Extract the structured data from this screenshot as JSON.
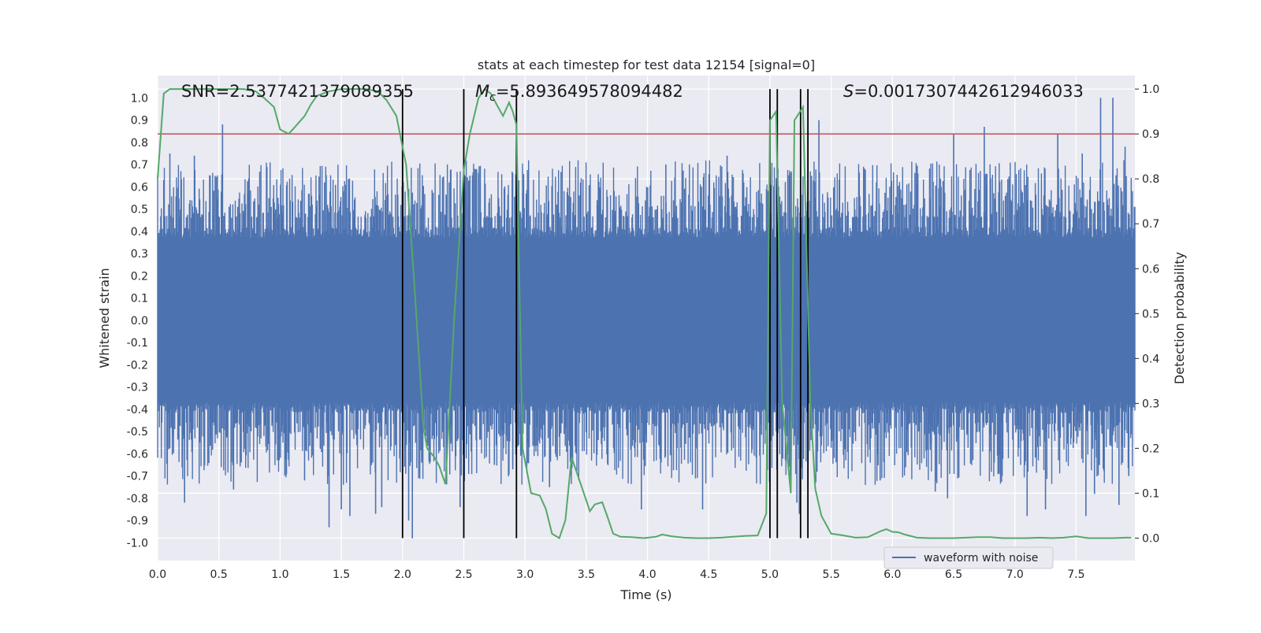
{
  "chart_data": {
    "type": "line",
    "title": "stats at each timestep for test data 12154 [signal=0]",
    "xlabel": "Time (s)",
    "ylabel": "Whitened strain",
    "y2label": "Detection probability",
    "xlim": [
      0.0,
      7.98
    ],
    "ylim": [
      -1.08,
      1.1
    ],
    "y2lim": [
      -0.05,
      1.03
    ],
    "xticks": [
      "0.0",
      "0.5",
      "1.0",
      "1.5",
      "2.0",
      "2.5",
      "3.0",
      "3.5",
      "4.0",
      "4.5",
      "5.0",
      "5.5",
      "6.0",
      "6.5",
      "7.0",
      "7.5"
    ],
    "yticks": [
      "1.0",
      "0.9",
      "0.8",
      "0.7",
      "0.6",
      "0.5",
      "0.4",
      "0.3",
      "0.2",
      "0.1",
      "0.0",
      "-0.1",
      "-0.2",
      "-0.3",
      "-0.4",
      "-0.5",
      "-0.6",
      "-0.7",
      "-0.8",
      "-0.9",
      "-1.0"
    ],
    "y2ticks": [
      "1.0",
      "0.9",
      "0.8",
      "0.7",
      "0.6",
      "0.5",
      "0.4",
      "0.3",
      "0.2",
      "0.1",
      "0.0"
    ],
    "annotations": {
      "snr": "SNR=2.5377421379089355",
      "mc_symbol": "M",
      "mc_sub": "c",
      "mc_value": "=5.893649578094482",
      "s_symbol": "S",
      "s_value": "=0.0017307442612946033"
    },
    "threshold": {
      "y2": 0.9,
      "color": "#c44e52"
    },
    "event_lines_x": [
      2.0,
      2.5,
      2.93,
      5.0,
      5.06,
      5.25,
      5.31
    ],
    "waveform": {
      "name": "waveform with noise",
      "color": "#4c72b0",
      "noise_envelope": 0.42,
      "seed": 12154,
      "spikes": [
        {
          "x": 0.05,
          "y": 0.63
        },
        {
          "x": 0.1,
          "y": 0.75
        },
        {
          "x": 0.3,
          "y": 0.74
        },
        {
          "x": 0.53,
          "y": 0.88
        },
        {
          "x": 0.22,
          "y": -0.82
        },
        {
          "x": 0.62,
          "y": -0.76
        },
        {
          "x": 1.2,
          "y": -0.72
        },
        {
          "x": 1.4,
          "y": -0.93
        },
        {
          "x": 1.5,
          "y": -0.85
        },
        {
          "x": 1.57,
          "y": -0.88
        },
        {
          "x": 1.78,
          "y": -0.87
        },
        {
          "x": 1.83,
          "y": -0.84
        },
        {
          "x": 2.08,
          "y": -0.98
        },
        {
          "x": 2.05,
          "y": -0.9
        },
        {
          "x": 2.47,
          "y": -0.84
        },
        {
          "x": 2.55,
          "y": 0.65
        },
        {
          "x": 2.9,
          "y": -0.67
        },
        {
          "x": 2.75,
          "y": -0.65
        },
        {
          "x": 3.2,
          "y": -0.75
        },
        {
          "x": 3.42,
          "y": -0.6
        },
        {
          "x": 3.95,
          "y": -0.85
        },
        {
          "x": 4.15,
          "y": 0.7
        },
        {
          "x": 4.45,
          "y": -0.85
        },
        {
          "x": 4.65,
          "y": 0.74
        },
        {
          "x": 5.22,
          "y": -0.82
        },
        {
          "x": 5.24,
          "y": -0.87
        },
        {
          "x": 5.4,
          "y": 0.9
        },
        {
          "x": 5.9,
          "y": -0.72
        },
        {
          "x": 6.35,
          "y": -0.77
        },
        {
          "x": 6.45,
          "y": -0.8
        },
        {
          "x": 6.5,
          "y": 0.84
        },
        {
          "x": 6.75,
          "y": 0.87
        },
        {
          "x": 7.1,
          "y": -0.88
        },
        {
          "x": 7.25,
          "y": -0.85
        },
        {
          "x": 7.35,
          "y": 0.84
        },
        {
          "x": 7.55,
          "y": 0.75
        },
        {
          "x": 7.58,
          "y": -0.88
        },
        {
          "x": 7.65,
          "y": -0.78
        },
        {
          "x": 7.7,
          "y": 1.0
        },
        {
          "x": 7.8,
          "y": 1.0
        },
        {
          "x": 7.85,
          "y": -0.83
        },
        {
          "x": 7.9,
          "y": 0.78
        },
        {
          "x": 7.93,
          "y": -0.7
        }
      ]
    },
    "probability": {
      "name": "detection probability",
      "color": "#55a868",
      "x": [
        0.0,
        0.05,
        0.1,
        0.2,
        0.3,
        0.4,
        0.5,
        0.6,
        0.7,
        0.8,
        0.87,
        0.95,
        1.0,
        1.07,
        1.12,
        1.2,
        1.25,
        1.3,
        1.4,
        1.5,
        1.6,
        1.7,
        1.8,
        1.87,
        1.95,
        2.03,
        2.1,
        2.17,
        2.2,
        2.26,
        2.3,
        2.35,
        2.42,
        2.5,
        2.55,
        2.62,
        2.67,
        2.72,
        2.77,
        2.82,
        2.87,
        2.9,
        2.93,
        2.95,
        2.98,
        3.05,
        3.12,
        3.17,
        3.22,
        3.28,
        3.33,
        3.38,
        3.43,
        3.48,
        3.53,
        3.57,
        3.63,
        3.67,
        3.72,
        3.78,
        3.87,
        3.97,
        4.07,
        4.12,
        4.2,
        4.3,
        4.4,
        4.5,
        4.6,
        4.7,
        4.8,
        4.9,
        4.97,
        5.0,
        5.05,
        5.1,
        5.17,
        5.2,
        5.27,
        5.33,
        5.37,
        5.42,
        5.5,
        5.6,
        5.7,
        5.8,
        5.9,
        5.95,
        6.0,
        6.05,
        6.1,
        6.2,
        6.3,
        6.4,
        6.5,
        6.6,
        6.7,
        6.8,
        6.9,
        7.0,
        7.1,
        7.2,
        7.3,
        7.4,
        7.5,
        7.6,
        7.7,
        7.8,
        7.9,
        7.95
      ],
      "y": [
        0.8,
        0.99,
        1.0,
        1.0,
        1.0,
        1.0,
        1.0,
        1.0,
        1.0,
        0.995,
        0.98,
        0.96,
        0.91,
        0.9,
        0.915,
        0.94,
        0.965,
        0.985,
        0.995,
        1.0,
        1.0,
        1.0,
        0.995,
        0.975,
        0.94,
        0.83,
        0.55,
        0.25,
        0.2,
        0.18,
        0.16,
        0.12,
        0.48,
        0.82,
        0.9,
        0.98,
        1.0,
        0.99,
        0.965,
        0.94,
        0.97,
        0.95,
        0.92,
        0.62,
        0.2,
        0.1,
        0.095,
        0.065,
        0.01,
        0.0,
        0.04,
        0.18,
        0.14,
        0.1,
        0.06,
        0.075,
        0.08,
        0.05,
        0.01,
        0.003,
        0.002,
        0.0,
        0.003,
        0.008,
        0.004,
        0.001,
        0.0,
        0.0,
        0.001,
        0.003,
        0.005,
        0.006,
        0.055,
        0.93,
        0.95,
        0.3,
        0.1,
        0.93,
        0.96,
        0.3,
        0.11,
        0.05,
        0.01,
        0.006,
        0.001,
        0.002,
        0.015,
        0.02,
        0.014,
        0.013,
        0.008,
        0.001,
        0.0,
        0.0,
        0.0,
        0.001,
        0.002,
        0.002,
        0.0,
        0.0,
        0.0,
        0.001,
        0.0,
        0.001,
        0.004,
        0.0,
        0.0,
        0.0,
        0.001,
        0.001
      ]
    }
  }
}
